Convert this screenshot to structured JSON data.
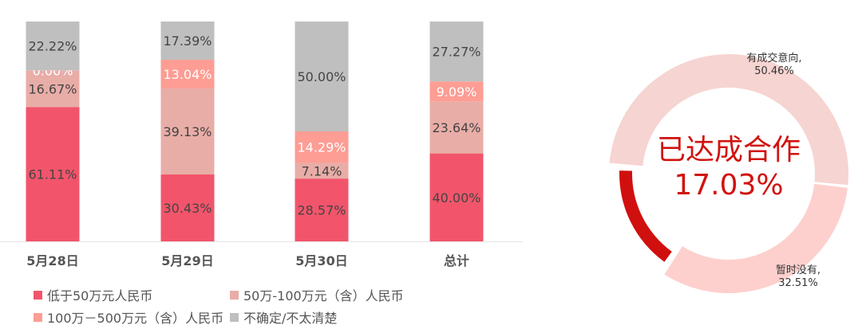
{
  "chart_data": [
    {
      "type": "bar",
      "stacked": true,
      "normalized_percent": true,
      "categories": [
        "5月28日",
        "5月29日",
        "5月30日",
        "总计"
      ],
      "ylim": [
        0,
        100
      ],
      "grid": false,
      "legend_position": "bottom",
      "series": [
        {
          "name": "低于50万元人民币",
          "color": "#f2556b",
          "label_color": "#444444",
          "values": [
            61.11,
            30.43,
            28.57,
            40.0
          ],
          "labels": [
            "61.11%",
            "30.43%",
            "28.57%",
            "40.00%"
          ]
        },
        {
          "name": "50万-100万元（含）人民币",
          "color": "#e9ada7",
          "label_color": "#444444",
          "values": [
            16.67,
            39.13,
            7.14,
            23.64
          ],
          "labels": [
            "16.67%",
            "39.13%",
            "7.14%",
            "23.64%"
          ]
        },
        {
          "name": "100万－500万元（含）人民币",
          "color": "#fd9d94",
          "label_color": "#ffffff",
          "values": [
            0.0,
            13.04,
            14.29,
            9.09
          ],
          "labels": [
            "0.00%",
            "13.04%",
            "14.29%",
            "9.09%"
          ]
        },
        {
          "name": "不确定/不太清楚",
          "color": "#bfbfbf",
          "label_color": "#444444",
          "values": [
            22.22,
            17.39,
            50.0,
            27.27
          ],
          "labels": [
            "22.22%",
            "17.39%",
            "50.00%",
            "27.27%"
          ]
        }
      ]
    },
    {
      "type": "pie",
      "donut": true,
      "center_text": [
        "已达成合作",
        "17.03%"
      ],
      "center_color": "#d0130f",
      "slices": [
        {
          "name": "有成交意向",
          "value": 50.46,
          "label": "有成交意向,",
          "value_label": "50.46%",
          "color": "#f6d4d1"
        },
        {
          "name": "暂时没有",
          "value": 32.51,
          "label": "暂时没有,",
          "value_label": "32.51%",
          "color": "#fdd0cd"
        },
        {
          "name": "已达成合作",
          "value": 17.03,
          "color": "#d0100e"
        }
      ]
    }
  ]
}
